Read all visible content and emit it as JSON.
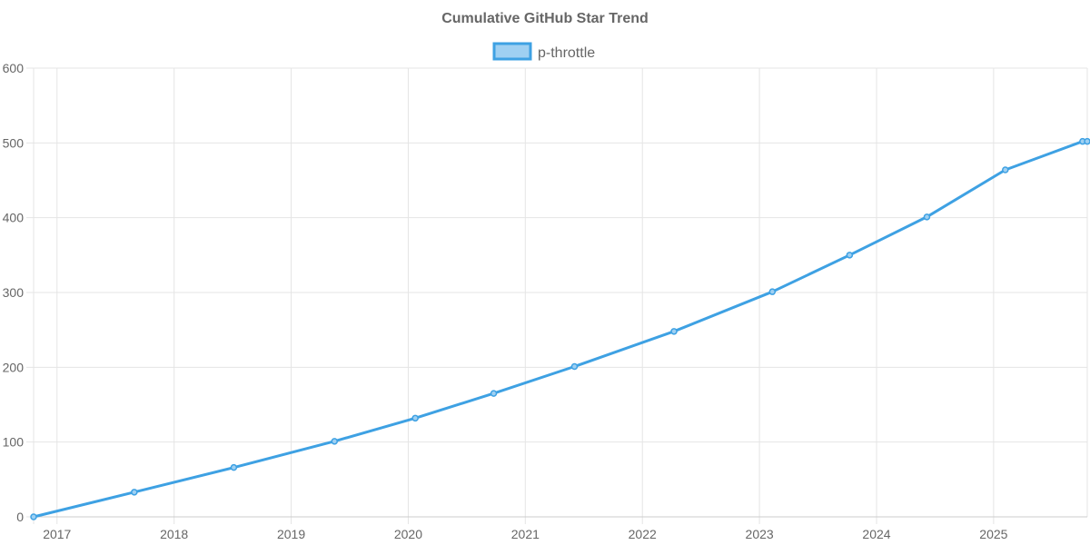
{
  "chart_data": {
    "type": "line",
    "title": "Cumulative GitHub Star Trend",
    "legend": {
      "placement": "top-center",
      "label": "p-throttle"
    },
    "colors": {
      "line": "#3ea1e3",
      "fill": "#9fd0f2",
      "grid": "#e5e5e5",
      "text": "#666666"
    },
    "xlim": [
      2016.8,
      2025.8
    ],
    "ylim": [
      0,
      600
    ],
    "x_ticks": [
      {
        "value": 2017.0,
        "label": "2017"
      },
      {
        "value": 2018.0,
        "label": "2018"
      },
      {
        "value": 2019.0,
        "label": "2019"
      },
      {
        "value": 2020.0,
        "label": "2020"
      },
      {
        "value": 2021.0,
        "label": "2021"
      },
      {
        "value": 2022.0,
        "label": "2022"
      },
      {
        "value": 2023.0,
        "label": "2023"
      },
      {
        "value": 2024.0,
        "label": "2024"
      },
      {
        "value": 2025.0,
        "label": "2025"
      }
    ],
    "y_ticks": [
      0,
      100,
      200,
      300,
      400,
      500,
      600
    ],
    "series": [
      {
        "name": "p-throttle",
        "points": [
          {
            "x": 2016.8,
            "y": 0
          },
          {
            "x": 2017.66,
            "y": 33
          },
          {
            "x": 2018.51,
            "y": 66
          },
          {
            "x": 2019.37,
            "y": 101
          },
          {
            "x": 2020.06,
            "y": 132
          },
          {
            "x": 2020.73,
            "y": 165
          },
          {
            "x": 2021.42,
            "y": 201
          },
          {
            "x": 2022.27,
            "y": 248
          },
          {
            "x": 2023.11,
            "y": 301
          },
          {
            "x": 2023.77,
            "y": 350
          },
          {
            "x": 2024.43,
            "y": 401
          },
          {
            "x": 2025.1,
            "y": 464
          },
          {
            "x": 2025.76,
            "y": 502
          },
          {
            "x": 2025.8,
            "y": 502
          }
        ]
      }
    ]
  }
}
